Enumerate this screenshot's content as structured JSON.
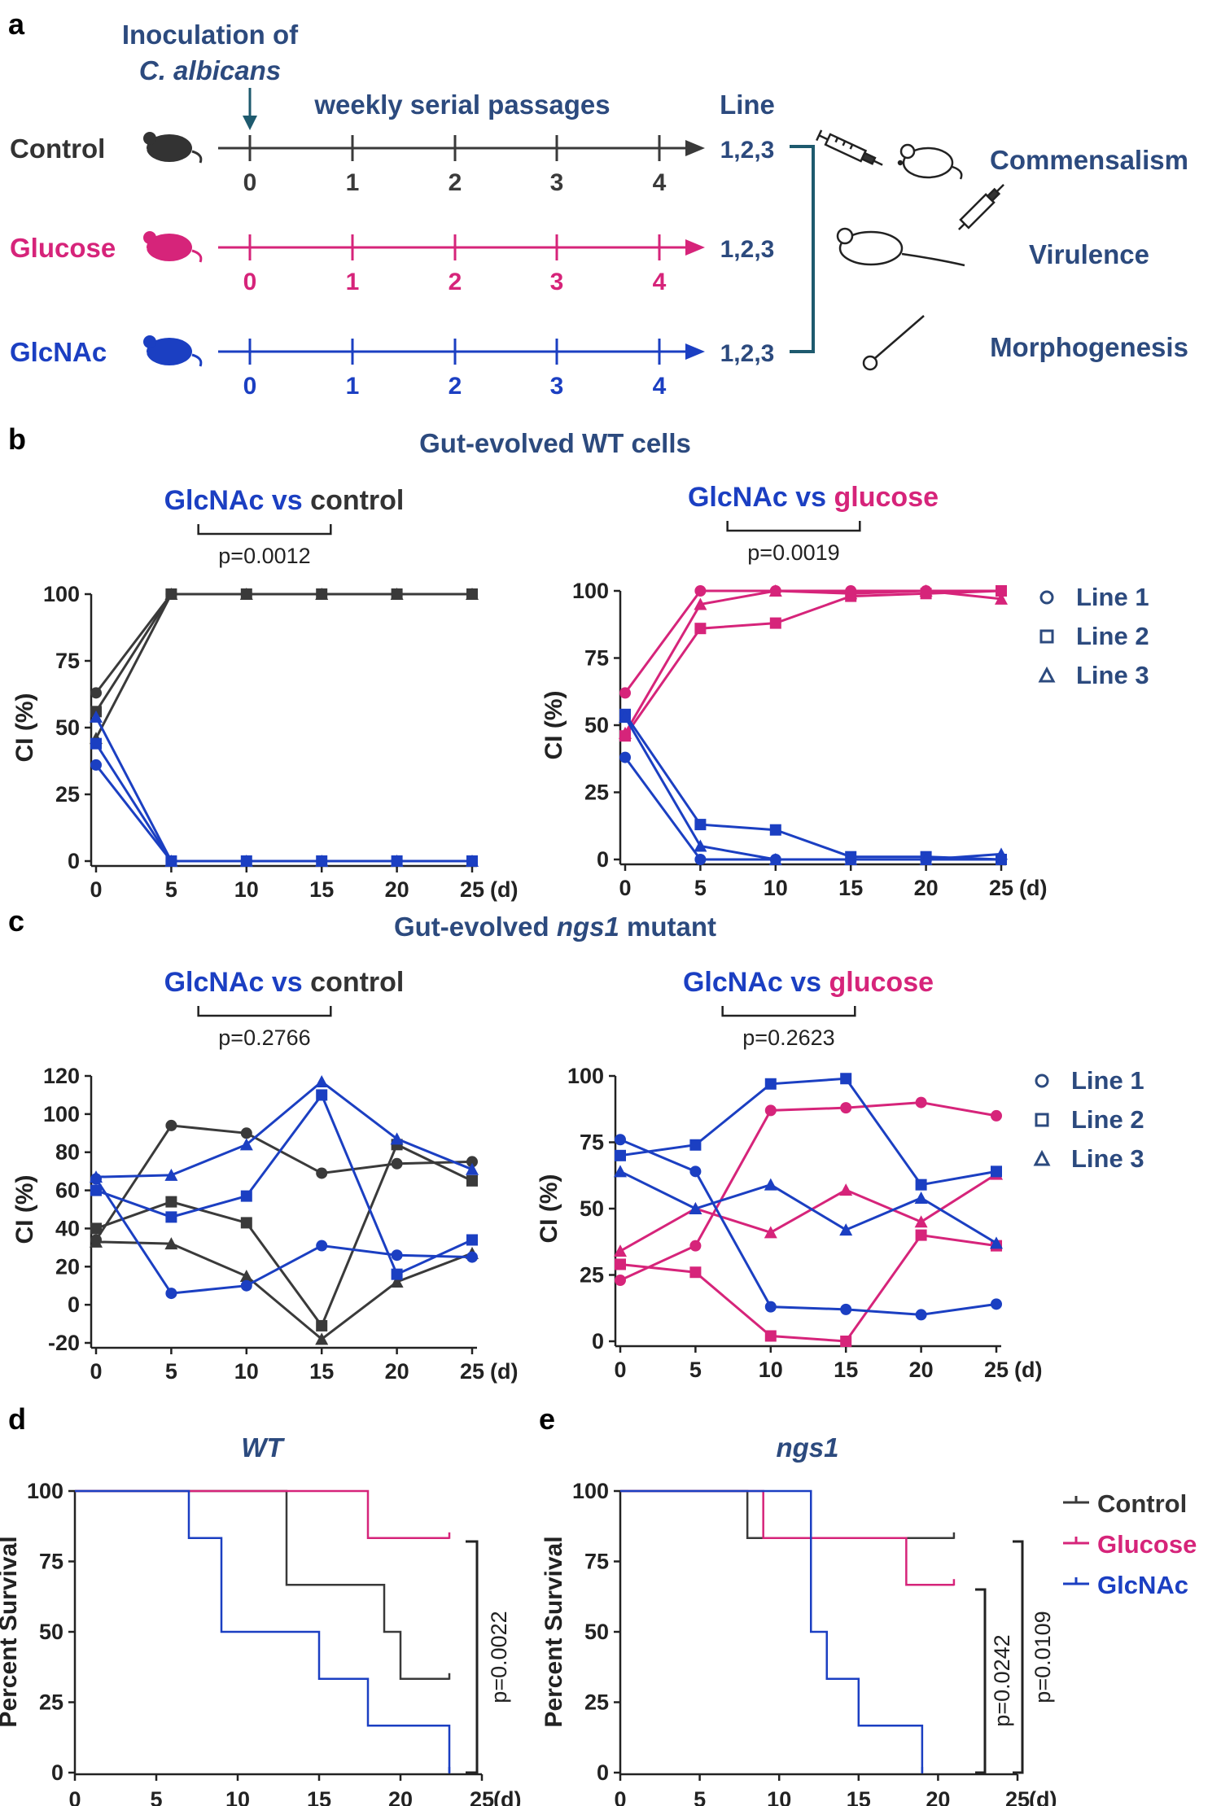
{
  "colors": {
    "control": "#3a3a3a",
    "glucose": "#d6247a",
    "glcnac": "#1b3fc2",
    "navy": "#2c4a7e"
  },
  "panel_a": {
    "label": "a",
    "inoculation_line1": "Inoculation of",
    "inoculation_line2": "C. albicans",
    "passages_label": "weekly serial passages",
    "line_header": "Line",
    "groups": [
      {
        "name": "Control",
        "lines": "1,2,3",
        "ticks": [
          "0",
          "1",
          "2",
          "3",
          "4"
        ]
      },
      {
        "name": "Glucose",
        "lines": "1,2,3",
        "ticks": [
          "0",
          "1",
          "2",
          "3",
          "4"
        ]
      },
      {
        "name": "GlcNAc",
        "lines": "1,2,3",
        "ticks": [
          "0",
          "1",
          "2",
          "3",
          "4"
        ]
      }
    ],
    "outcomes": [
      "Commensalism",
      "Virulence",
      "Morphogenesis"
    ]
  },
  "panel_b": {
    "label": "b",
    "title": "Gut-evolved WT cells"
  },
  "panel_c": {
    "label": "c",
    "title_prefix": "Gut-evolved ",
    "title_italic": "ngs1",
    "title_suffix": " mutant"
  },
  "panel_d": {
    "label": "d",
    "title": "WT"
  },
  "panel_e": {
    "label": "e",
    "title": "ngs1"
  },
  "comparison_words": {
    "glcnac": "GlcNAc",
    "vs": " vs ",
    "control": "control",
    "glucose": "glucose"
  },
  "legend_lines": [
    "Line 1",
    "Line 2",
    "Line 3"
  ],
  "legend_survival": [
    "Control",
    "Glucose",
    "GlcNAc"
  ],
  "chart_data": [
    {
      "id": "b-left",
      "type": "line",
      "title": "GlcNAc vs control",
      "pvalue": "p=0.0012",
      "x": [
        0,
        5,
        10,
        15,
        20,
        25
      ],
      "xlabel": "(d)",
      "ylabel": "CI (%)",
      "yticks": [
        0,
        25,
        50,
        75,
        100
      ],
      "ylim": [
        0,
        100
      ],
      "series": [
        {
          "name": "Control Line 1",
          "group": "control",
          "marker": "circle",
          "values": [
            63,
            100,
            100,
            100,
            100,
            100
          ]
        },
        {
          "name": "Control Line 2",
          "group": "control",
          "marker": "square",
          "values": [
            56,
            100,
            100,
            100,
            100,
            100
          ]
        },
        {
          "name": "Control Line 3",
          "group": "control",
          "marker": "triangle",
          "values": [
            46,
            100,
            100,
            100,
            100,
            100
          ]
        },
        {
          "name": "GlcNAc Line 1",
          "group": "glcnac",
          "marker": "circle",
          "values": [
            36,
            0,
            0,
            0,
            0,
            0
          ]
        },
        {
          "name": "GlcNAc Line 2",
          "group": "glcnac",
          "marker": "square",
          "values": [
            44,
            0,
            0,
            0,
            0,
            0
          ]
        },
        {
          "name": "GlcNAc Line 3",
          "group": "glcnac",
          "marker": "triangle",
          "values": [
            54,
            0,
            0,
            0,
            0,
            0
          ]
        }
      ]
    },
    {
      "id": "b-right",
      "type": "line",
      "title": "GlcNAc vs glucose",
      "pvalue": "p=0.0019",
      "x": [
        0,
        5,
        10,
        15,
        20,
        25
      ],
      "xlabel": "(d)",
      "ylabel": "CI (%)",
      "yticks": [
        0,
        25,
        50,
        75,
        100
      ],
      "ylim": [
        0,
        100
      ],
      "series": [
        {
          "name": "Glucose Line 1",
          "group": "glucose",
          "marker": "circle",
          "values": [
            62,
            100,
            100,
            100,
            100,
            100
          ]
        },
        {
          "name": "Glucose Line 2",
          "group": "glucose",
          "marker": "square",
          "values": [
            46,
            86,
            88,
            98,
            99,
            100
          ]
        },
        {
          "name": "Glucose Line 3",
          "group": "glucose",
          "marker": "triangle",
          "values": [
            47,
            95,
            100,
            99,
            100,
            97
          ]
        },
        {
          "name": "GlcNAc Line 1",
          "group": "glcnac",
          "marker": "circle",
          "values": [
            38,
            0,
            0,
            0,
            0,
            0
          ]
        },
        {
          "name": "GlcNAc Line 2",
          "group": "glcnac",
          "marker": "square",
          "values": [
            54,
            13,
            11,
            1,
            1,
            0
          ]
        },
        {
          "name": "GlcNAc Line 3",
          "group": "glcnac",
          "marker": "triangle",
          "values": [
            53,
            5,
            0,
            0,
            0,
            2
          ]
        }
      ]
    },
    {
      "id": "c-left",
      "type": "line",
      "title": "GlcNAc vs control",
      "pvalue": "p=0.2766",
      "x": [
        0,
        5,
        10,
        15,
        20,
        25
      ],
      "xlabel": "(d)",
      "ylabel": "CI (%)",
      "yticks": [
        -20,
        0,
        20,
        40,
        60,
        80,
        100,
        120
      ],
      "ylim": [
        -20,
        120
      ],
      "series": [
        {
          "name": "Control Line 1",
          "group": "control",
          "marker": "circle",
          "values": [
            34,
            94,
            90,
            69,
            74,
            75
          ]
        },
        {
          "name": "Control Line 2",
          "group": "control",
          "marker": "square",
          "values": [
            40,
            54,
            43,
            -11,
            84,
            65
          ]
        },
        {
          "name": "Control Line 3",
          "group": "control",
          "marker": "triangle",
          "values": [
            33,
            32,
            15,
            -18,
            12,
            27
          ]
        },
        {
          "name": "GlcNAc Line 1",
          "group": "glcnac",
          "marker": "circle",
          "values": [
            66,
            6,
            10,
            31,
            26,
            25
          ]
        },
        {
          "name": "GlcNAc Line 2",
          "group": "glcnac",
          "marker": "square",
          "values": [
            60,
            46,
            57,
            110,
            16,
            34
          ]
        },
        {
          "name": "GlcNAc Line 3",
          "group": "glcnac",
          "marker": "triangle",
          "values": [
            67,
            68,
            84,
            117,
            87,
            71
          ]
        }
      ]
    },
    {
      "id": "c-right",
      "type": "line",
      "title": "GlcNAc vs glucose",
      "pvalue": "p=0.2623",
      "x": [
        0,
        5,
        10,
        15,
        20,
        25
      ],
      "xlabel": "(d)",
      "ylabel": "CI (%)",
      "yticks": [
        0,
        25,
        50,
        75,
        100
      ],
      "ylim": [
        0,
        100
      ],
      "series": [
        {
          "name": "Glucose Line 1",
          "group": "glucose",
          "marker": "circle",
          "values": [
            23,
            36,
            87,
            88,
            90,
            85
          ]
        },
        {
          "name": "Glucose Line 2",
          "group": "glucose",
          "marker": "square",
          "values": [
            29,
            26,
            2,
            0,
            40,
            36
          ]
        },
        {
          "name": "Glucose Line 3",
          "group": "glucose",
          "marker": "triangle",
          "values": [
            34,
            50,
            41,
            57,
            45,
            63
          ]
        },
        {
          "name": "GlcNAc Line 1",
          "group": "glcnac",
          "marker": "circle",
          "values": [
            76,
            64,
            13,
            12,
            10,
            14
          ]
        },
        {
          "name": "GlcNAc Line 2",
          "group": "glcnac",
          "marker": "square",
          "values": [
            70,
            74,
            97,
            99,
            59,
            64
          ]
        },
        {
          "name": "GlcNAc Line 3",
          "group": "glcnac",
          "marker": "triangle",
          "values": [
            64,
            50,
            59,
            42,
            54,
            37
          ]
        }
      ]
    },
    {
      "id": "d",
      "type": "line",
      "subtype": "survival",
      "title": "WT",
      "xlabel": "(d)",
      "ylabel": "Percent Survival",
      "xticks": [
        0,
        5,
        10,
        15,
        20,
        25
      ],
      "yticks": [
        0,
        25,
        50,
        75,
        100
      ],
      "ylim": [
        0,
        100
      ],
      "xlim": [
        0,
        25
      ],
      "pvalues": [
        "p=0.0022"
      ],
      "series": [
        {
          "name": "Control",
          "group": "control",
          "steps": [
            [
              0,
              100
            ],
            [
              13,
              66.7
            ],
            [
              19,
              50
            ],
            [
              20,
              33.3
            ],
            [
              23,
              33.3
            ]
          ]
        },
        {
          "name": "Glucose",
          "group": "glucose",
          "steps": [
            [
              0,
              100
            ],
            [
              18,
              83.3
            ],
            [
              23,
              83.3
            ]
          ]
        },
        {
          "name": "GlcNAc",
          "group": "glcnac",
          "steps": [
            [
              0,
              100
            ],
            [
              7,
              83.3
            ],
            [
              9,
              50
            ],
            [
              15,
              33.3
            ],
            [
              18,
              16.7
            ],
            [
              23,
              0
            ]
          ]
        }
      ]
    },
    {
      "id": "e",
      "type": "line",
      "subtype": "survival",
      "title": "ngs1",
      "xlabel": "(d)",
      "ylabel": "Percent Survival",
      "xticks": [
        0,
        5,
        10,
        15,
        20,
        25
      ],
      "yticks": [
        0,
        25,
        50,
        75,
        100
      ],
      "ylim": [
        0,
        100
      ],
      "xlim": [
        0,
        25
      ],
      "pvalues": [
        "p=0.0242",
        "p=0.0109"
      ],
      "series": [
        {
          "name": "Control",
          "group": "control",
          "steps": [
            [
              0,
              100
            ],
            [
              8,
              83.3
            ],
            [
              21,
              83.3
            ]
          ]
        },
        {
          "name": "Glucose",
          "group": "glucose",
          "steps": [
            [
              0,
              100
            ],
            [
              9,
              83.3
            ],
            [
              18,
              66.7
            ],
            [
              21,
              66.7
            ]
          ]
        },
        {
          "name": "GlcNAc",
          "group": "glcnac",
          "steps": [
            [
              0,
              100
            ],
            [
              12,
              50
            ],
            [
              13,
              33.3
            ],
            [
              15,
              16.7
            ],
            [
              19,
              0
            ]
          ]
        }
      ]
    }
  ]
}
